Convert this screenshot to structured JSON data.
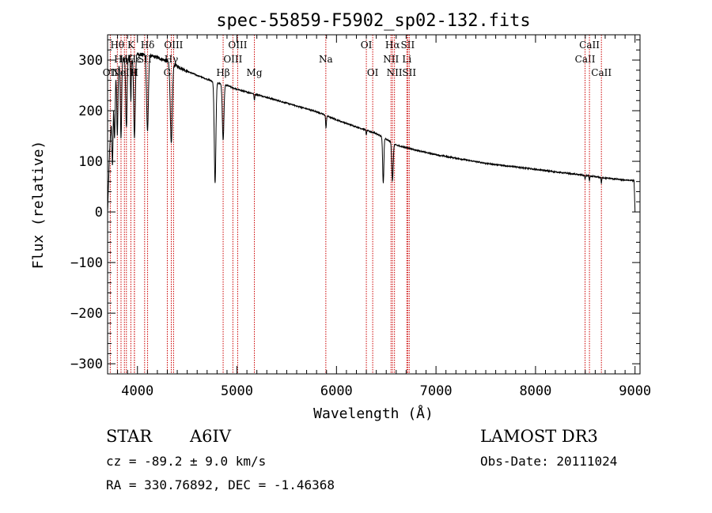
{
  "chart_data": {
    "type": "line",
    "title": "spec-55859-F5902_sp02-132.fits",
    "xlabel": "Wavelength (Å)",
    "ylabel": "Flux (relative)",
    "xlim": [
      3700,
      9050
    ],
    "ylim": [
      -320,
      350
    ],
    "x_ticks": [
      4000,
      5000,
      6000,
      7000,
      8000,
      9000
    ],
    "y_ticks": [
      -300,
      -200,
      -100,
      0,
      100,
      200,
      300
    ],
    "line_color": "#000000",
    "marker_color": "#cc0000",
    "continuum": [
      [
        3700,
        0
      ],
      [
        3720,
        120
      ],
      [
        3760,
        260
      ],
      [
        3800,
        285
      ],
      [
        3850,
        300
      ],
      [
        3900,
        308
      ],
      [
        3950,
        305
      ],
      [
        4000,
        312
      ],
      [
        4100,
        310
      ],
      [
        4200,
        305
      ],
      [
        4300,
        298
      ],
      [
        4400,
        288
      ],
      [
        4500,
        278
      ],
      [
        4600,
        270
      ],
      [
        4700,
        262
      ],
      [
        4800,
        255
      ],
      [
        4900,
        250
      ],
      [
        5000,
        242
      ],
      [
        5200,
        232
      ],
      [
        5500,
        215
      ],
      [
        5800,
        198
      ],
      [
        6000,
        182
      ],
      [
        6200,
        168
      ],
      [
        6400,
        155
      ],
      [
        6600,
        132
      ],
      [
        6800,
        122
      ],
      [
        7000,
        113
      ],
      [
        7500,
        96
      ],
      [
        8000,
        84
      ],
      [
        8500,
        72
      ],
      [
        8700,
        67
      ],
      [
        8900,
        63
      ],
      [
        8990,
        62
      ],
      [
        9000,
        0
      ]
    ],
    "absorption": [
      {
        "center": 3750,
        "depth": 130,
        "width": 6
      },
      {
        "center": 3770,
        "depth": 120,
        "width": 6
      },
      {
        "center": 3798,
        "depth": 130,
        "width": 6
      },
      {
        "center": 3835,
        "depth": 150,
        "width": 6
      },
      {
        "center": 3889,
        "depth": 140,
        "width": 7
      },
      {
        "center": 3934,
        "depth": 90,
        "width": 4
      },
      {
        "center": 3970,
        "depth": 160,
        "width": 8
      },
      {
        "center": 4101,
        "depth": 150,
        "width": 9
      },
      {
        "center": 4340,
        "depth": 160,
        "width": 10
      },
      {
        "center": 4780,
        "depth": 200,
        "width": 8
      },
      {
        "center": 4861,
        "depth": 110,
        "width": 8
      },
      {
        "center": 5175,
        "depth": 12,
        "width": 4
      },
      {
        "center": 5895,
        "depth": 25,
        "width": 4
      },
      {
        "center": 6300,
        "depth": 10,
        "width": 3
      },
      {
        "center": 6470,
        "depth": 90,
        "width": 6
      },
      {
        "center": 6563,
        "depth": 75,
        "width": 7
      },
      {
        "center": 8498,
        "depth": 8,
        "width": 3
      },
      {
        "center": 8542,
        "depth": 10,
        "width": 3
      },
      {
        "center": 8662,
        "depth": 12,
        "width": 3
      }
    ],
    "line_markers": [
      {
        "x": 3727,
        "label": "OII",
        "row": 3
      },
      {
        "x": 3798,
        "label": "Hθ",
        "row": 1
      },
      {
        "x": 3835,
        "label": "Hη",
        "row": 2
      },
      {
        "x": 3869,
        "label": "NeIII",
        "row": 3
      },
      {
        "x": 3889,
        "label": "Hζ",
        "row": 2
      },
      {
        "x": 3934,
        "label": "K",
        "row": 1
      },
      {
        "x": 3969,
        "label": "H",
        "row": 3
      },
      {
        "x": 3970,
        "label": "Hε",
        "row": 2
      },
      {
        "x": 4072,
        "label": "SII",
        "row": 2
      },
      {
        "x": 4102,
        "label": "Hδ",
        "row": 1
      },
      {
        "x": 4300,
        "label": "G",
        "row": 3
      },
      {
        "x": 4340,
        "label": "Hγ",
        "row": 2
      },
      {
        "x": 4363,
        "label": "OIII",
        "row": 1
      },
      {
        "x": 4861,
        "label": "Hβ",
        "row": 3
      },
      {
        "x": 4959,
        "label": "OIII",
        "row": 2
      },
      {
        "x": 5007,
        "label": "OIII",
        "row": 1
      },
      {
        "x": 5175,
        "label": "Mg",
        "row": 3
      },
      {
        "x": 5893,
        "label": "Na",
        "row": 2
      },
      {
        "x": 6300,
        "label": "OI",
        "row": 1
      },
      {
        "x": 6364,
        "label": "OI",
        "row": 3
      },
      {
        "x": 6548,
        "label": "NII",
        "row": 2
      },
      {
        "x": 6563,
        "label": "Hα",
        "row": 1
      },
      {
        "x": 6583,
        "label": "NII",
        "row": 3
      },
      {
        "x": 6707,
        "label": "Li",
        "row": 2
      },
      {
        "x": 6716,
        "label": "SII",
        "row": 1
      },
      {
        "x": 6731,
        "label": "SII",
        "row": 3
      },
      {
        "x": 8498,
        "label": "CaII",
        "row": 2
      },
      {
        "x": 8542,
        "label": "CaII",
        "row": 1
      },
      {
        "x": 8662,
        "label": "CaII",
        "row": 3
      }
    ]
  },
  "info": {
    "object_class": "STAR",
    "subclass": "A6IV",
    "survey": "LAMOST DR3",
    "redshift": "cz = -89.2 ± 9.0 km/s",
    "obs_date": "Obs-Date: 20111024",
    "coords": "RA = 330.76892, DEC =  -1.46368"
  }
}
